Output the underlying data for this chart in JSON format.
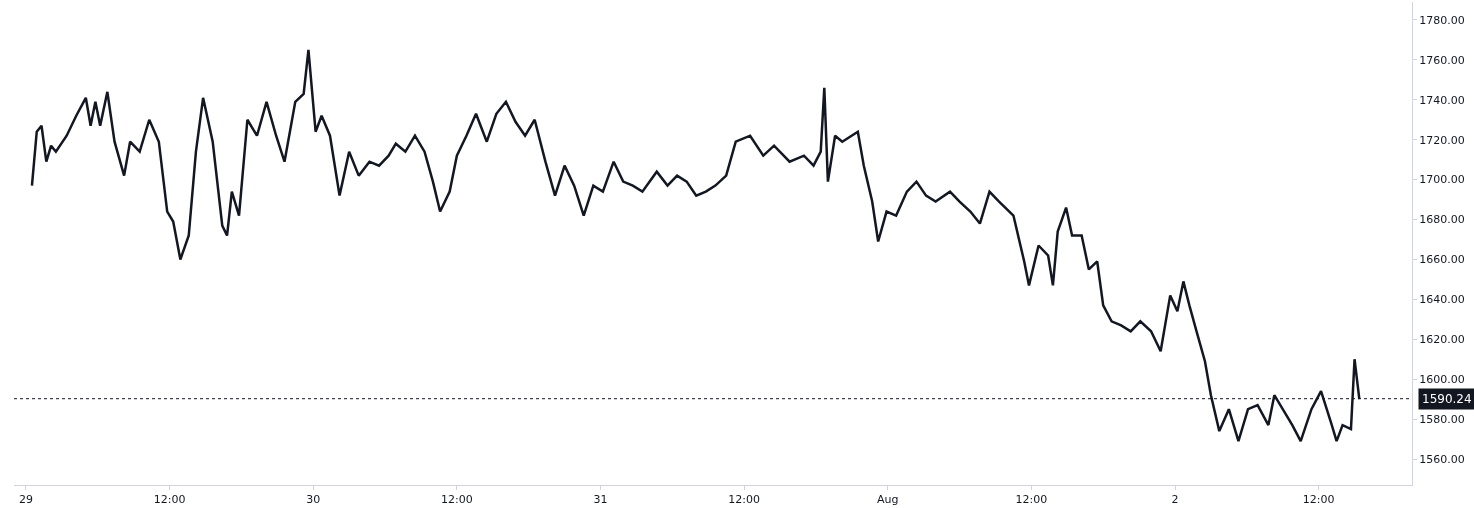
{
  "chart_data": {
    "type": "line",
    "series": [
      {
        "x": [
          "--07-29T00:30",
          "--07-29T00:54",
          "--07-29T01:18",
          "--07-29T01:42",
          "--07-29T02:06",
          "--07-29T02:30",
          "--07-29T03:24",
          "--07-29T04:12",
          "--07-29T05:00",
          "--07-29T05:24",
          "--07-29T05:48",
          "--07-29T06:12",
          "--07-29T06:48",
          "--07-29T07:24",
          "--07-29T08:12",
          "--07-29T08:42",
          "--07-29T09:30",
          "--07-29T10:18",
          "--07-29T11:06",
          "--07-29T11:48",
          "--07-29T12:18",
          "--07-29T12:54",
          "--07-29T13:36",
          "--07-29T14:12",
          "--07-29T14:48",
          "--07-29T15:36",
          "--07-29T16:24",
          "--07-29T16:48",
          "--07-29T17:12",
          "--07-29T17:48",
          "--07-29T18:30",
          "--07-29T19:18",
          "--07-29T20:06",
          "--07-29T20:54",
          "--07-29T21:36",
          "--07-29T22:30",
          "--07-29T23:12",
          "--07-29T23:36",
          "--07-30T00:12",
          "--07-30T00:42",
          "--07-30T01:24",
          "--07-30T02:12",
          "--07-30T03:00",
          "--07-30T03:48",
          "--07-30T04:42",
          "--07-30T05:30",
          "--07-30T06:18",
          "--07-30T06:54",
          "--07-30T07:42",
          "--07-30T08:30",
          "--07-30T09:18",
          "--07-30T10:00",
          "--07-30T10:36",
          "--07-30T11:24",
          "--07-30T12:00",
          "--07-30T12:48",
          "--07-30T13:36",
          "--07-30T14:30",
          "--07-30T15:18",
          "--07-30T16:06",
          "--07-30T16:54",
          "--07-30T17:42",
          "--07-30T18:30",
          "--07-30T19:24",
          "--07-30T20:12",
          "--07-30T21:00",
          "--07-30T21:48",
          "--07-30T22:36",
          "--07-30T23:24",
          "--07-31T00:12",
          "--07-31T01:06",
          "--07-31T01:54",
          "--07-31T02:42",
          "--07-31T03:30",
          "--07-31T04:42",
          "--07-31T05:36",
          "--07-31T06:24",
          "--07-31T07:12",
          "--07-31T08:00",
          "--07-31T08:48",
          "--07-31T09:36",
          "--07-31T10:30",
          "--07-31T11:18",
          "--07-31T12:30",
          "--07-31T13:36",
          "--07-31T14:30",
          "--07-31T15:48",
          "--07-31T17:00",
          "--07-31T17:48",
          "--07-31T18:24",
          "--07-31T18:42",
          "--07-31T19:00",
          "--07-31T19:36",
          "--07-31T20:12",
          "--07-31T21:30",
          "--07-31T22:00",
          "--07-31T22:42",
          "--07-31T23:12",
          "--07-31T23:54",
          "--08-01T00:42",
          "--08-01T01:36",
          "--08-01T02:24",
          "--08-01T03:12",
          "--08-01T04:00",
          "--08-01T05:12",
          "--08-01T06:00",
          "--08-01T06:54",
          "--08-01T07:42",
          "--08-01T08:30",
          "--08-01T09:18",
          "--08-01T10:30",
          "--08-01T11:24",
          "--08-01T11:48",
          "--08-01T12:36",
          "--08-01T13:24",
          "--08-01T13:48",
          "--08-01T14:12",
          "--08-01T14:54",
          "--08-01T15:24",
          "--08-01T16:12",
          "--08-01T16:48",
          "--08-01T17:30",
          "--08-01T18:00",
          "--08-01T18:42",
          "--08-01T19:30",
          "--08-01T20:18",
          "--08-01T21:06",
          "--08-01T22:00",
          "--08-01T22:48",
          "--08-01T23:36",
          "--08-02T00:12",
          "--08-02T00:42",
          "--08-02T01:12",
          "--08-02T01:48",
          "--08-02T02:30",
          "--08-02T03:00",
          "--08-02T03:42",
          "--08-02T04:30",
          "--08-02T05:18",
          "--08-02T06:06",
          "--08-02T06:54",
          "--08-02T07:48",
          "--08-02T08:18",
          "--08-02T09:00",
          "--08-02T09:48",
          "--08-02T10:30",
          "--08-02T11:24",
          "--08-02T12:12",
          "--08-02T13:06",
          "--08-02T13:30",
          "--08-02T14:00",
          "--08-02T14:42",
          "--08-02T15:00",
          "--08-02T15:24"
        ],
        "color": "#131722",
        "values": [
          1697,
          1724,
          1727,
          1709,
          1717,
          1714,
          1722,
          1732,
          1741,
          1727,
          1739,
          1727,
          1744,
          1719,
          1702,
          1719,
          1714,
          1730,
          1719,
          1684,
          1679,
          1660,
          1672,
          1714,
          1741,
          1719,
          1677,
          1672,
          1694,
          1682,
          1730,
          1722,
          1739,
          1722,
          1709,
          1739,
          1743,
          1765,
          1724,
          1732,
          1722,
          1692,
          1714,
          1702,
          1709,
          1707,
          1712,
          1718,
          1714,
          1722,
          1714,
          1699,
          1684,
          1694,
          1712,
          1722,
          1733,
          1719,
          1733,
          1739,
          1729,
          1722,
          1730,
          1709,
          1692,
          1707,
          1697,
          1682,
          1697,
          1694,
          1709,
          1699,
          1697,
          1694,
          1704,
          1697,
          1702,
          1699,
          1692,
          1694,
          1697,
          1702,
          1719,
          1722,
          1712,
          1717,
          1709,
          1712,
          1707,
          1714,
          1746,
          1699,
          1722,
          1719,
          1724,
          1707,
          1689,
          1669,
          1684,
          1682,
          1694,
          1699,
          1692,
          1689,
          1694,
          1689,
          1684,
          1678,
          1694,
          1689,
          1682,
          1659,
          1647,
          1667,
          1662,
          1647,
          1674,
          1686,
          1672,
          1672,
          1655,
          1659,
          1637,
          1629,
          1627,
          1624,
          1629,
          1624,
          1614,
          1642,
          1634,
          1649,
          1637,
          1624,
          1609,
          1592,
          1574,
          1585,
          1569,
          1585,
          1587,
          1577,
          1592,
          1585,
          1577,
          1569,
          1585,
          1594,
          1577,
          1569,
          1577,
          1575,
          1610,
          1590
        ]
      }
    ],
    "xlim": [
      "--07-28T23:00",
      "--08-02T19:48"
    ],
    "xticks": [
      {
        "value": "--07-29",
        "label": "29"
      },
      {
        "value": "--07-29T12:00",
        "label": "12:00"
      },
      {
        "value": "--07-30",
        "label": "30"
      },
      {
        "value": "--07-30T12:00",
        "label": "12:00"
      },
      {
        "value": "--07-31",
        "label": "31"
      },
      {
        "value": "--07-31T12:00",
        "label": "12:00"
      },
      {
        "value": "--08-01",
        "label": "Aug"
      },
      {
        "value": "--08-01T12:00",
        "label": "12:00"
      },
      {
        "value": "--08-02",
        "label": "2"
      },
      {
        "value": "--08-02T12:00",
        "label": "12:00"
      }
    ],
    "ylim": [
      1547,
      1789
    ],
    "yticks": [
      {
        "value": 1560,
        "label": "1560.00"
      },
      {
        "value": 1580,
        "label": "1580.00"
      },
      {
        "value": 1600,
        "label": "1600.00"
      },
      {
        "value": 1620,
        "label": "1620.00"
      },
      {
        "value": 1640,
        "label": "1640.00"
      },
      {
        "value": 1660,
        "label": "1660.00"
      },
      {
        "value": 1680,
        "label": "1680.00"
      },
      {
        "value": 1700,
        "label": "1700.00"
      },
      {
        "value": 1720,
        "label": "1720.00"
      },
      {
        "value": 1740,
        "label": "1740.00"
      },
      {
        "value": 1760,
        "label": "1760.00"
      },
      {
        "value": 1780,
        "label": "1780.00"
      }
    ],
    "ref_lines": [
      {
        "axis": "y",
        "value": 1590.24,
        "label": "1590.24",
        "color": "#131722",
        "line_style": "dotted"
      }
    ],
    "line_style": "solid",
    "marker": "none"
  }
}
